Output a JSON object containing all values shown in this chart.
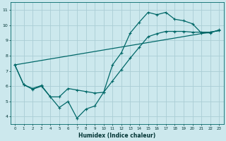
{
  "xlabel": "Humidex (Indice chaleur)",
  "background_color": "#cce8ed",
  "grid_color": "#aacdd5",
  "line_color": "#006868",
  "xlim": [
    -0.5,
    23.5
  ],
  "ylim": [
    3.5,
    11.5
  ],
  "xticks": [
    0,
    1,
    2,
    3,
    4,
    5,
    6,
    7,
    8,
    9,
    10,
    11,
    12,
    13,
    14,
    15,
    16,
    17,
    18,
    19,
    20,
    21,
    22,
    23
  ],
  "yticks": [
    4,
    5,
    6,
    7,
    8,
    9,
    10,
    11
  ],
  "line1_x": [
    0,
    1,
    2,
    3,
    4,
    5,
    6,
    7,
    8,
    9,
    10,
    11,
    12,
    13,
    14,
    15,
    16,
    17,
    18,
    19,
    20,
    21,
    22,
    23
  ],
  "line1_y": [
    7.4,
    6.1,
    5.8,
    6.0,
    5.3,
    4.6,
    5.0,
    3.9,
    4.5,
    4.7,
    5.6,
    7.4,
    8.2,
    9.5,
    10.2,
    10.85,
    10.7,
    10.85,
    10.4,
    10.3,
    10.1,
    9.5,
    9.5,
    9.7
  ],
  "line2_x": [
    0,
    1,
    2,
    3,
    4,
    5,
    6,
    7,
    8,
    9,
    10,
    11,
    12,
    13,
    14,
    15,
    16,
    17,
    18,
    19,
    20,
    21,
    22,
    23
  ],
  "line2_y": [
    7.4,
    6.1,
    5.85,
    6.05,
    5.3,
    5.3,
    5.85,
    5.75,
    5.65,
    5.55,
    5.6,
    6.35,
    7.1,
    7.85,
    8.55,
    9.25,
    9.45,
    9.6,
    9.6,
    9.6,
    9.55,
    9.55,
    9.55,
    9.65
  ],
  "line3_x": [
    0,
    23
  ],
  "line3_y": [
    7.4,
    9.65
  ]
}
